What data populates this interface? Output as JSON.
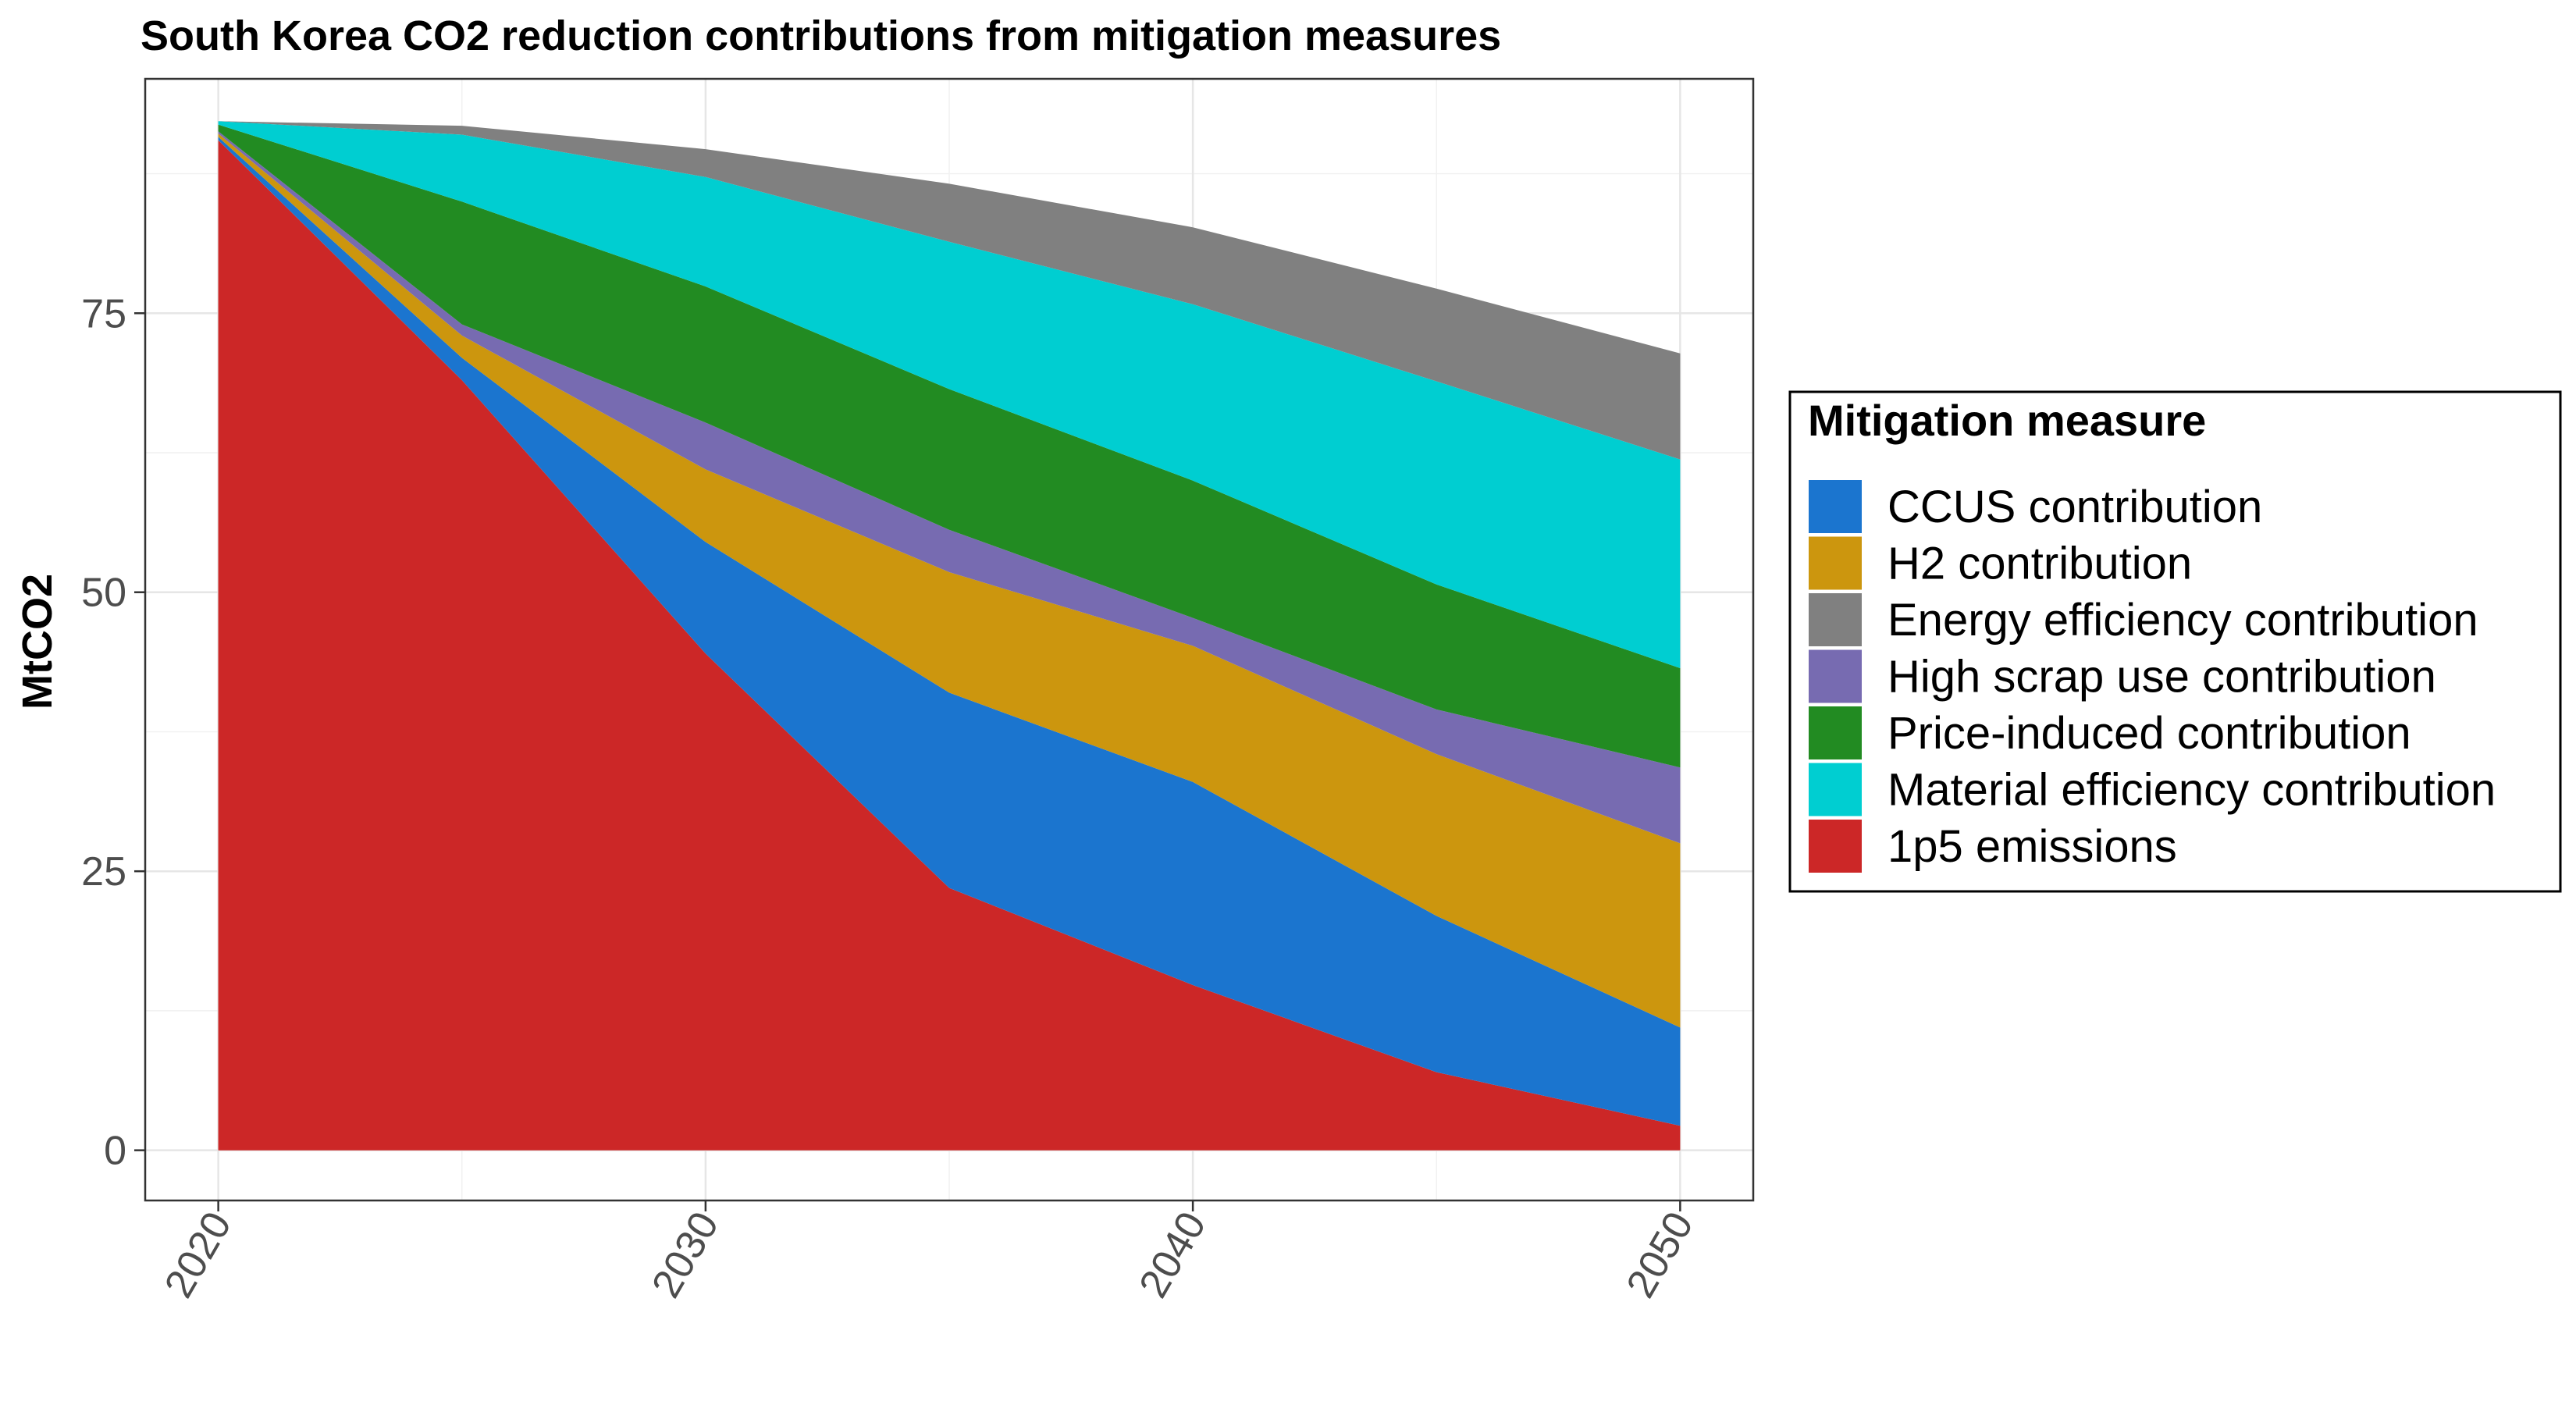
{
  "chart_data": {
    "type": "area",
    "stacked": true,
    "title": "South Korea CO2 reduction contributions from mitigation measures",
    "xlabel": "",
    "ylabel": "MtCO2",
    "x": [
      2020,
      2025,
      2030,
      2035,
      2040,
      2045,
      2050
    ],
    "xlim": [
      2018.5,
      2051.5
    ],
    "ylim": [
      -4.5,
      96
    ],
    "x_ticks": [
      "2020",
      "2030",
      "2040",
      "2050"
    ],
    "y_ticks": [
      "0",
      "25",
      "50",
      "75"
    ],
    "grid": true,
    "legend_position": "right",
    "legend_title": "Mitigation measure",
    "legend_order": [
      "CCUS contribution",
      "H2 contribution",
      "Energy efficiency contribution",
      "High scrap use contribution",
      "Price-induced contribution",
      "Material efficiency contribution",
      "1p5 emissions"
    ],
    "series": [
      {
        "name": "1p5 emissions",
        "color": "#CC2727",
        "values": [
          90.5,
          69.0,
          44.5,
          23.5,
          14.8,
          7.0,
          2.2
        ]
      },
      {
        "name": "CCUS contribution",
        "color": "#1B75CF",
        "values": [
          0.3,
          2.0,
          10.0,
          17.5,
          18.2,
          14.0,
          8.8
        ]
      },
      {
        "name": "H2 contribution",
        "color": "#CC960E",
        "values": [
          0.3,
          2.0,
          6.5,
          10.8,
          12.2,
          14.5,
          16.5
        ]
      },
      {
        "name": "High scrap use contribution",
        "color": "#776BB1",
        "values": [
          0.2,
          1.0,
          4.2,
          3.8,
          2.5,
          4.0,
          6.8
        ]
      },
      {
        "name": "Price-induced contribution",
        "color": "#228B22",
        "values": [
          0.6,
          11.0,
          12.2,
          12.6,
          12.3,
          11.2,
          8.9
        ]
      },
      {
        "name": "Material efficiency contribution",
        "color": "#00CED1",
        "values": [
          0.3,
          6.0,
          9.8,
          13.2,
          15.8,
          18.2,
          18.7
        ]
      },
      {
        "name": "Energy efficiency contribution",
        "color": "#808080",
        "values": [
          0.0,
          0.8,
          2.5,
          5.2,
          6.9,
          8.3,
          9.5
        ]
      }
    ]
  }
}
